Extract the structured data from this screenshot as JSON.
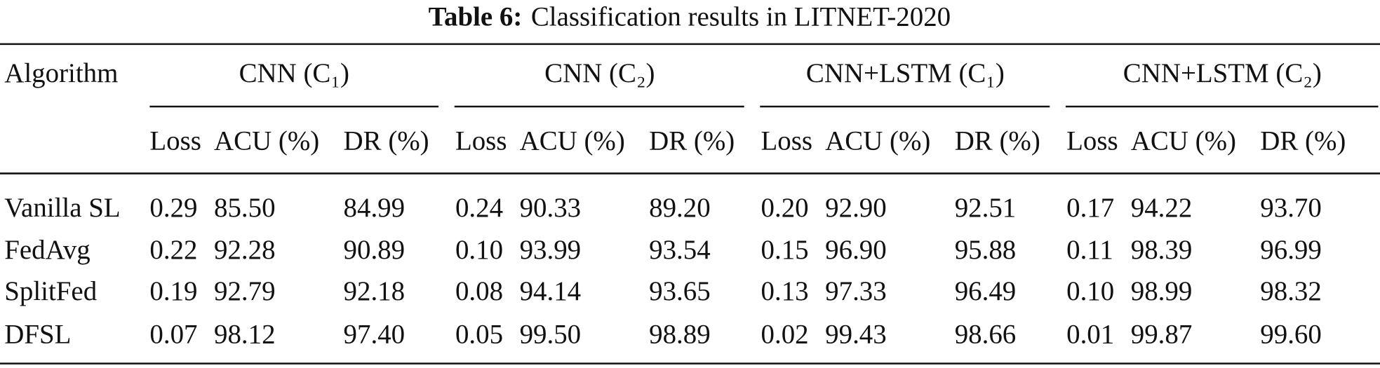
{
  "title": {
    "label": "Table 6:",
    "text": "Classification results in LITNET-2020"
  },
  "table": {
    "header": "Algorithm",
    "groups": [
      "CNN (C₁)",
      "CNN (C₂)",
      "CNN+LSTM (C₁)",
      "CNN+LSTM (C₂)"
    ],
    "subheaders": [
      [
        "Loss",
        "ACU (%)",
        "DR (%)"
      ],
      [
        "Loss",
        "ACU (%)",
        "DR (%)"
      ],
      [
        "Loss",
        "ACU (%)",
        "DR (%)"
      ],
      [
        "Loss",
        "ACU (%)",
        "DR (%)"
      ]
    ],
    "rows": [
      [
        "Vanilla SL",
        "0.29",
        "85.50",
        "84.99",
        "0.24",
        "90.33",
        "89.20",
        "0.20",
        "92.90",
        "92.51",
        "0.17",
        "94.22",
        "93.70"
      ],
      [
        "FedAvg",
        "0.22",
        "92.28",
        "90.89",
        "0.10",
        "93.99",
        "93.54",
        "0.15",
        "96.90",
        "95.88",
        "0.11",
        "98.39",
        "96.99"
      ],
      [
        "SplitFed",
        "0.19",
        "92.79",
        "92.18",
        "0.08",
        "94.14",
        "93.65",
        "0.13",
        "97.33",
        "96.49",
        "0.10",
        "98.99",
        "98.32"
      ],
      [
        "DFSL",
        "0.07",
        "98.12",
        "97.40",
        "0.05",
        "99.50",
        "98.89",
        "0.02",
        "99.43",
        "98.66",
        "0.01",
        "99.87",
        "99.60"
      ]
    ]
  }
}
